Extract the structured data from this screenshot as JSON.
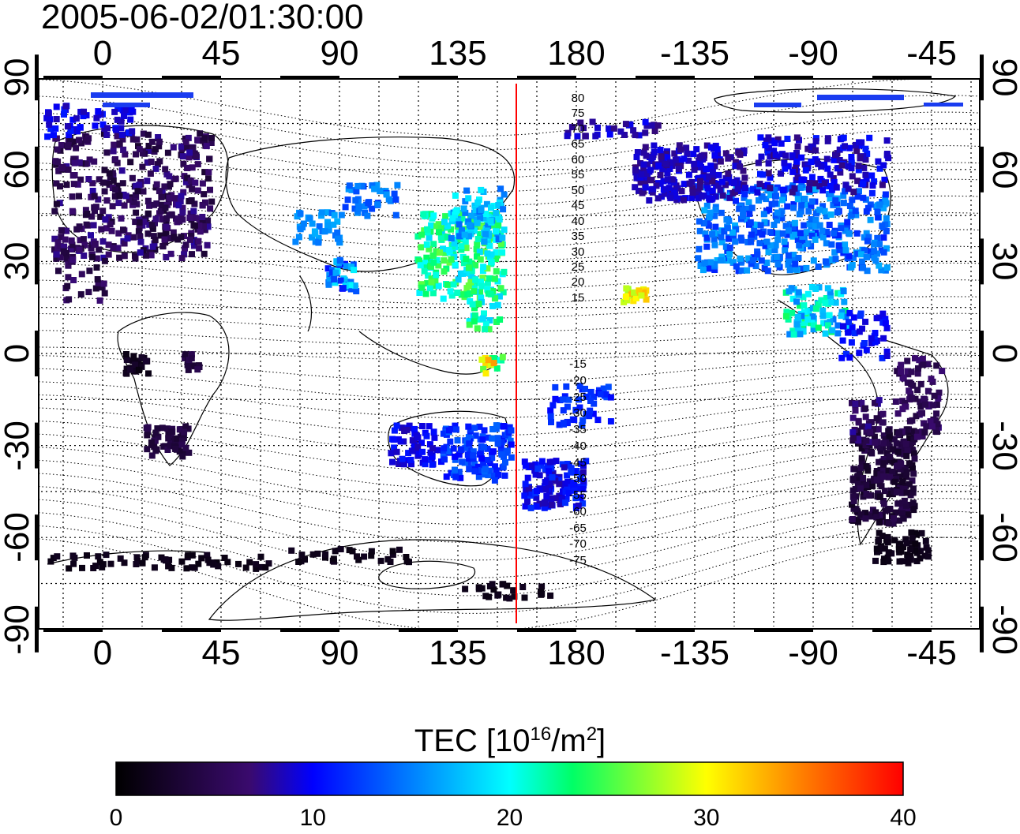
{
  "title": "2005-06-02/01:30:00",
  "map": {
    "x_ticks": [
      "0",
      "45",
      "90",
      "135",
      "180",
      "-135",
      "-90",
      "-45"
    ],
    "y_ticks": [
      "90",
      "60",
      "30",
      "0",
      "-30",
      "-60",
      "-90"
    ],
    "meridian_line_longitude": 158,
    "magnetic_latitude_labels": [
      "80",
      "75",
      "70",
      "65",
      "60",
      "55",
      "50",
      "45",
      "40",
      "35",
      "30",
      "25",
      "20",
      "15",
      "-15",
      "-20",
      "-25",
      "-30",
      "-35",
      "-40",
      "-45",
      "-50",
      "-55",
      "-60",
      "-65",
      "-70",
      "-75"
    ]
  },
  "colorbar": {
    "label_main": "TEC  [10",
    "label_exp": "16",
    "label_unit": "/m",
    "label_exp2": "2",
    "label_close": "]",
    "min": 0,
    "max": 40,
    "ticks": [
      "0",
      "10",
      "20",
      "30",
      "40"
    ],
    "colormap": [
      "#000000",
      "#3a0a6e",
      "#0000ff",
      "#00ffff",
      "#00ff00",
      "#ffff00",
      "#ff0000"
    ]
  },
  "colors": {
    "frame": "#000000",
    "grid": "#000000",
    "meridian_line": "#ff0000"
  }
}
